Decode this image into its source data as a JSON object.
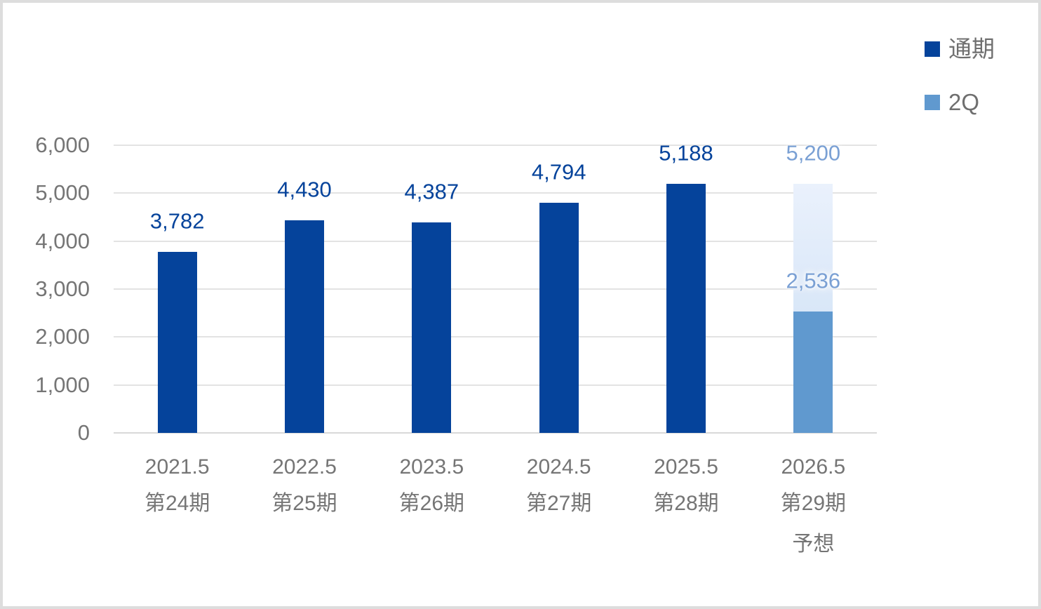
{
  "chart_data": {
    "type": "bar",
    "title": "",
    "grid": true,
    "legend_position": "top-right",
    "colors": {
      "actual_bar": "#05439B",
      "first_half_bar": "#6099CF",
      "forecast_fill_top": "#EAF1FC",
      "forecast_fill_bottom": "#D9E7F8",
      "actual_label_text": "#05439B",
      "forecast_label_text": "#7AA0D4",
      "axis_text": "#757575",
      "gridline": "#E3E3E3"
    },
    "y_axis": {
      "min": 0,
      "max": 6000,
      "tick_interval": 1000,
      "ticks": [
        {
          "value": 0,
          "label": "0"
        },
        {
          "value": 1000,
          "label": "1,000"
        },
        {
          "value": 2000,
          "label": "2,000"
        },
        {
          "value": 3000,
          "label": "3,000"
        },
        {
          "value": 4000,
          "label": "4,000"
        },
        {
          "value": 5000,
          "label": "5,000"
        },
        {
          "value": 6000,
          "label": "6,000"
        }
      ]
    },
    "categories": [
      {
        "year": "2021.5",
        "period": "第24期",
        "note": ""
      },
      {
        "year": "2022.5",
        "period": "第25期",
        "note": ""
      },
      {
        "year": "2023.5",
        "period": "第26期",
        "note": ""
      },
      {
        "year": "2024.5",
        "period": "第27期",
        "note": ""
      },
      {
        "year": "2025.5",
        "period": "第28期",
        "note": ""
      },
      {
        "year": "2026.5",
        "period": "第29期",
        "note": "予想"
      }
    ],
    "bars": [
      {
        "kind": "actual",
        "series": "通期",
        "value": 3782,
        "label": "3,782"
      },
      {
        "kind": "actual",
        "series": "通期",
        "value": 4430,
        "label": "4,430"
      },
      {
        "kind": "actual",
        "series": "通期",
        "value": 4387,
        "label": "4,387"
      },
      {
        "kind": "actual",
        "series": "通期",
        "value": 4794,
        "label": "4,794"
      },
      {
        "kind": "actual",
        "series": "通期",
        "value": 5188,
        "label": "5,188"
      },
      {
        "kind": "forecast",
        "total": {
          "series": "通期",
          "value": 5200,
          "label": "5,200"
        },
        "half": {
          "series": "2Q",
          "value": 2536,
          "label": "2,536"
        }
      }
    ],
    "legend": {
      "entries": [
        {
          "label": "通期",
          "color": "#05439B"
        },
        {
          "label": "2Q",
          "color": "#6099CF"
        }
      ]
    }
  }
}
